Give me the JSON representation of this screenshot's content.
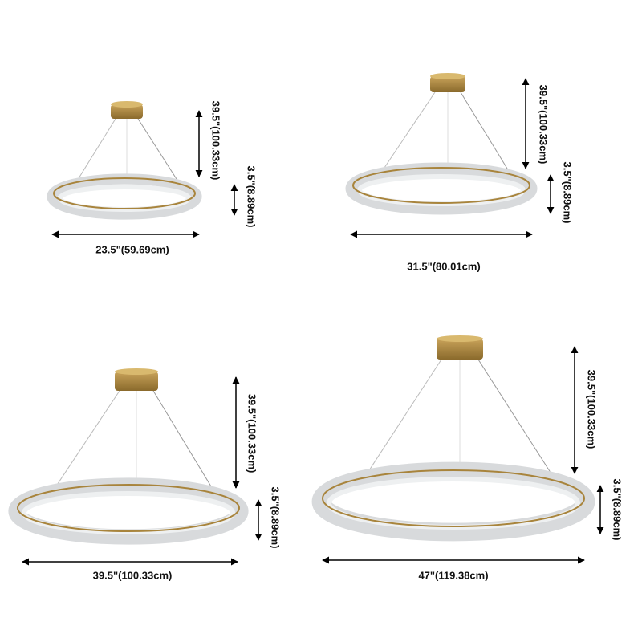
{
  "panels": [
    {
      "width": "23.5\"(59.69cm)",
      "drop": "39.5\"(100.33cm)",
      "ring_height": "3.5\"(8.89cm)"
    },
    {
      "width": "31.5\"(80.01cm)",
      "drop": "39.5\"(100.33cm)",
      "ring_height": "3.5\"(8.89cm)"
    },
    {
      "width": "39.5\"(100.33cm)",
      "drop": "39.5\"(100.33cm)",
      "ring_height": "3.5\"(8.89cm)"
    },
    {
      "width": "47\"(119.38cm)",
      "drop": "39.5\"(100.33cm)",
      "ring_height": "3.5\"(8.89cm)"
    }
  ]
}
